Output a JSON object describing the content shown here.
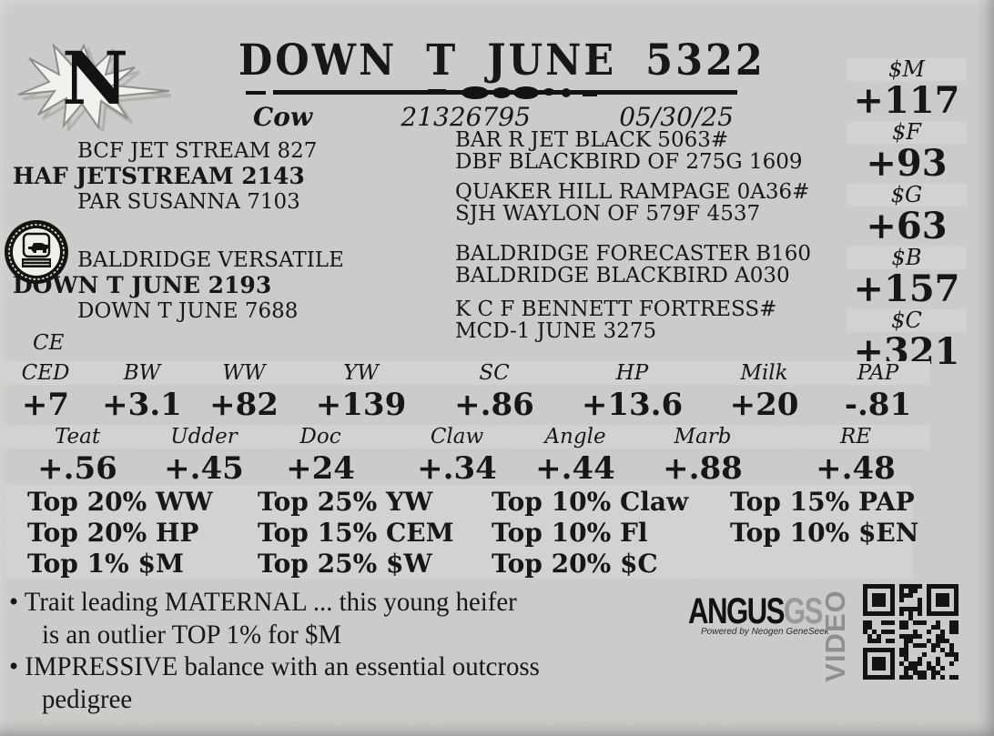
{
  "brand": {
    "letter": "N"
  },
  "header": {
    "title": "DOWN T JUNE 5322",
    "sex": "Cow",
    "registration": "21326795",
    "birth_date": "05/30/25"
  },
  "pedigree": {
    "sire_block": {
      "grandsire": "BCF JET STREAM 827",
      "name": "HAF JETSTREAM 2143",
      "granddam": "PAR SUSANNA 7103"
    },
    "dam_block": {
      "grandsire": "BALDRIDGE VERSATILE",
      "name": "DOWN T JUNE 2193",
      "granddam": "DOWN T JUNE 7688"
    },
    "extended": [
      "BAR R JET BLACK 5063#",
      "DBF BLACKBIRD OF 275G 1609",
      "QUAKER HILL RAMPAGE 0A36#",
      "SJH WAYLON OF 579F 4537",
      "BALDRIDGE FORECASTER B160",
      "BALDRIDGE BLACKBIRD A030",
      "K C F BENNETT FORTRESS#",
      "MCD-1 JUNE 3275"
    ]
  },
  "value_indexes": [
    {
      "label": "$M",
      "value": "+117"
    },
    {
      "label": "$F",
      "value": "+93"
    },
    {
      "label": "$G",
      "value": "+63"
    },
    {
      "label": "$B",
      "value": "+157"
    },
    {
      "label": "$C",
      "value": "+321"
    }
  ],
  "epd_table": {
    "corner_label": "CE",
    "row1": {
      "headers": [
        "CED",
        "BW",
        "WW",
        "YW",
        "SC",
        "HP",
        "Milk",
        "PAP"
      ],
      "values": [
        "+7",
        "+3.1",
        "+82",
        "+139",
        "+.86",
        "+13.6",
        "+20",
        "-.81"
      ]
    },
    "row2": {
      "headers": [
        "Teat",
        "Udder",
        "Doc",
        "Claw",
        "Angle",
        "Marb",
        "RE"
      ],
      "values": [
        "+.56",
        "+.45",
        "+24",
        "+.34",
        "+.44",
        "+.88",
        "+.48"
      ]
    }
  },
  "percentile_highlights": {
    "items": [
      "Top 20% WW",
      "Top 25% YW",
      "Top 10% Claw",
      "Top 15% PAP",
      "Top 20% HP",
      "Top 15% CEM",
      "Top 10% Fl",
      "Top 10% $EN",
      "Top 1% $M",
      "Top 25% $W",
      "Top 20% $C"
    ]
  },
  "notes": {
    "bullets": [
      {
        "line1": "• Trait leading MATERNAL ... this young heifer",
        "line2": "is an outlier TOP 1% for $M"
      },
      {
        "line1": "• IMPRESSIVE balance with an essential outcross",
        "line2": "pedigree"
      }
    ]
  },
  "footer": {
    "angus_brand": "ANGUS",
    "angus_suffix": "GS",
    "angus_tagline": "Powered by Neogen GeneSeek",
    "video_label": "VIDEO",
    "qr_icon": "qr-code"
  },
  "colors": {
    "paper": "#eae9e6",
    "bar_gray": "#d2d2d2",
    "ink": "#171717",
    "muted_gray": "#8f8f8f"
  }
}
